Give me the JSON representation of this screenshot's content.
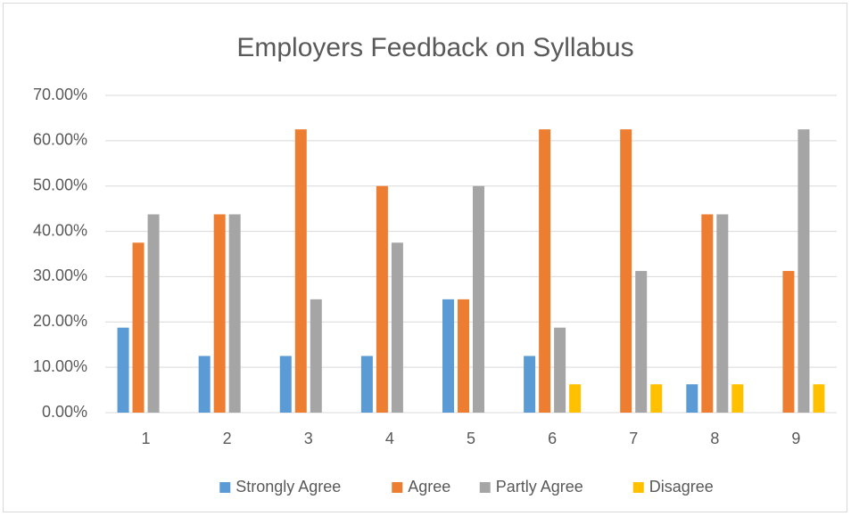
{
  "chart_data": {
    "type": "bar",
    "title": "Employers Feedback on Syllabus",
    "categories": [
      "1",
      "2",
      "3",
      "4",
      "5",
      "6",
      "7",
      "8",
      "9"
    ],
    "series": [
      {
        "name": "Strongly Agree",
        "color": "#5b9bd5",
        "values": [
          18.75,
          12.5,
          12.5,
          12.5,
          25,
          12.5,
          0,
          6.25,
          0
        ]
      },
      {
        "name": "Agree",
        "color": "#ed7d31",
        "values": [
          37.5,
          43.75,
          62.5,
          50,
          25,
          62.5,
          62.5,
          43.75,
          31.25
        ]
      },
      {
        "name": "Partly Agree",
        "color": "#a5a5a5",
        "values": [
          43.75,
          43.75,
          25,
          37.5,
          50,
          18.75,
          31.25,
          43.75,
          62.5
        ]
      },
      {
        "name": "Disagree",
        "color": "#ffc000",
        "values": [
          0,
          0,
          0,
          0,
          0,
          6.25,
          6.25,
          6.25,
          6.25
        ]
      }
    ],
    "ylim": [
      0,
      70
    ],
    "yticks": [
      {
        "value": 0,
        "label": "0.00%"
      },
      {
        "value": 10,
        "label": "10.00%"
      },
      {
        "value": 20,
        "label": "20.00%"
      },
      {
        "value": 30,
        "label": "30.00%"
      },
      {
        "value": 40,
        "label": "40.00%"
      },
      {
        "value": 50,
        "label": "50.00%"
      },
      {
        "value": 60,
        "label": "60.00%"
      },
      {
        "value": 70,
        "label": "70.00%"
      }
    ],
    "grid": true,
    "legend": "bottom"
  }
}
